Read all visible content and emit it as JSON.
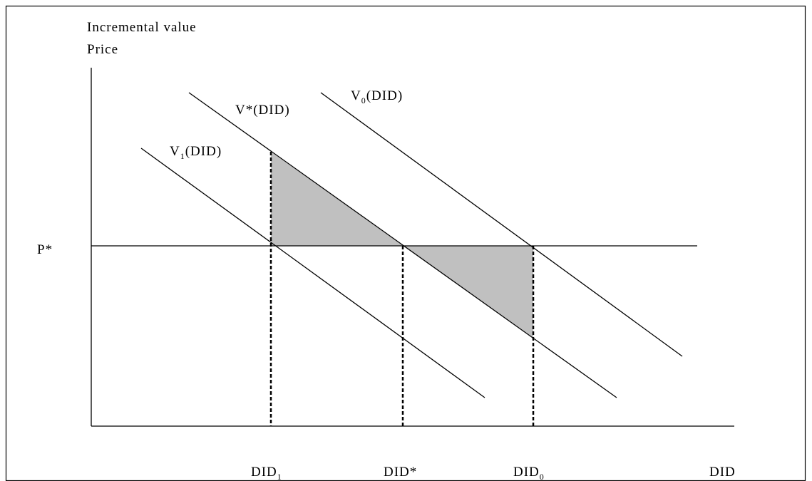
{
  "y_axis_label_lines": [
    "Incremental value",
    "Price"
  ],
  "x_axis_label": "DID",
  "price_label": "P*",
  "curves": [
    {
      "base": "V",
      "subscript": "0",
      "suffix": "(DID)"
    },
    {
      "base": "V*(DID)"
    },
    {
      "base": "V",
      "subscript": "1",
      "suffix": "(DID)"
    }
  ],
  "x_marks": [
    {
      "base": "DID",
      "subscript": "1"
    },
    {
      "base": "DID*"
    },
    {
      "base": "DID",
      "subscript": "0"
    }
  ]
}
